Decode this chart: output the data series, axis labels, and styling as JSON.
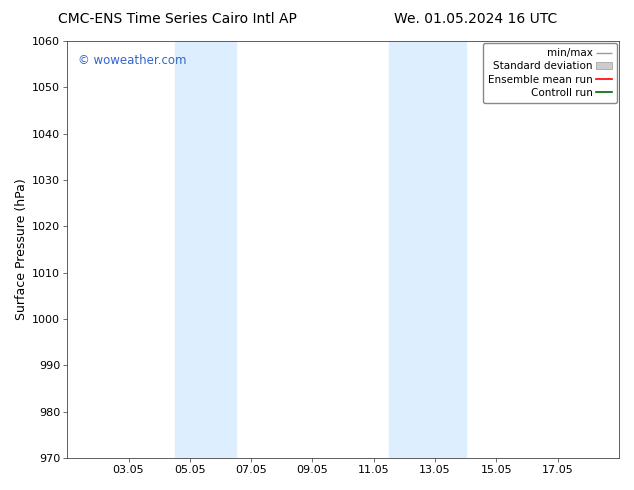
{
  "title_left": "CMC-ENS Time Series Cairo Intl AP",
  "title_right": "We. 01.05.2024 16 UTC",
  "ylabel": "Surface Pressure (hPa)",
  "ylim": [
    970,
    1060
  ],
  "yticks": [
    970,
    980,
    990,
    1000,
    1010,
    1020,
    1030,
    1040,
    1050,
    1060
  ],
  "xtick_labels": [
    "03.05",
    "05.05",
    "07.05",
    "09.05",
    "11.05",
    "13.05",
    "15.05",
    "17.05"
  ],
  "xtick_positions": [
    2,
    4,
    6,
    8,
    10,
    12,
    14,
    16
  ],
  "xlim": [
    0,
    18
  ],
  "watermark": "© woweather.com",
  "watermark_color": "#3366cc",
  "bg_color": "#ffffff",
  "shade_regions": [
    {
      "xmin": 3.5,
      "xmax": 5.5,
      "color": "#ddeeff"
    },
    {
      "xmin": 10.5,
      "xmax": 13.0,
      "color": "#ddeeff"
    }
  ],
  "legend_items": [
    {
      "label": "min/max",
      "color": "#aaaaaa",
      "type": "minmax"
    },
    {
      "label": "Standard deviation",
      "color": "#cccccc",
      "type": "stddev"
    },
    {
      "label": "Ensemble mean run",
      "color": "#ff0000",
      "type": "line"
    },
    {
      "label": "Controll run",
      "color": "#006600",
      "type": "line"
    }
  ],
  "title_fontsize": 10,
  "tick_fontsize": 8,
  "ylabel_fontsize": 9,
  "legend_fontsize": 7.5
}
